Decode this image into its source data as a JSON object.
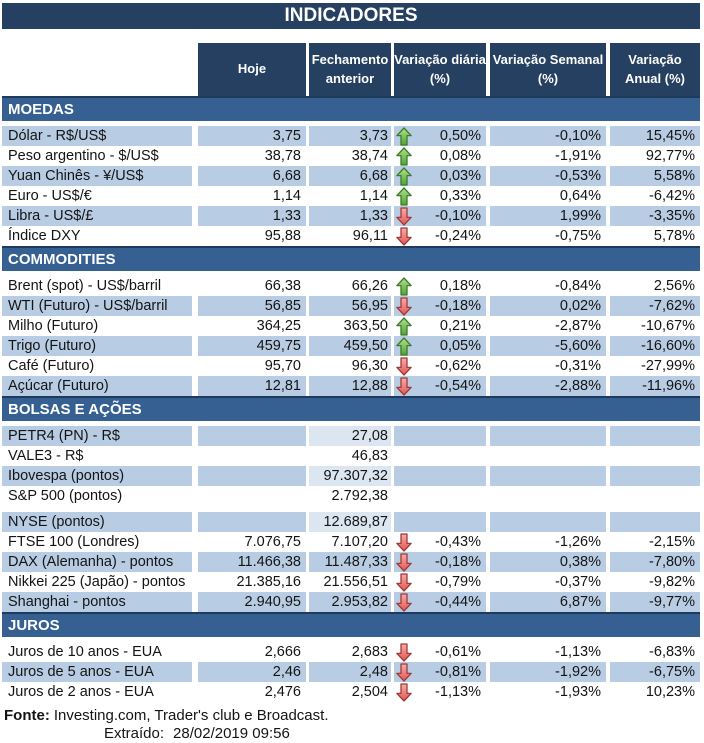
{
  "title": "INDICADORES",
  "columns": [
    "Hoje",
    "Fechamento\nanterior",
    "Variação diária\n(%)",
    "Variação Semanal\n(%)",
    "Variação\nAnual (%)"
  ],
  "colors": {
    "navy": "#254061",
    "section": "#366092",
    "row_blue": "#B8CCE4",
    "row_pale": "#DCE6F1",
    "arrow_up_fill_top": "#B2E08C",
    "arrow_up_fill_bottom": "#4FA332",
    "arrow_up_stroke": "#3C7A2E",
    "arrow_down_fill_top": "#F6ACA9",
    "arrow_down_fill_bottom": "#E25752",
    "arrow_down_stroke": "#9E3B3B"
  },
  "sections": [
    {
      "id": "moedas",
      "name": "MOEDAS",
      "rows": [
        {
          "label": "Dólar - R$/US$",
          "hoje": "3,75",
          "fechamento": "3,73",
          "arrow": "up",
          "var_diaria": "0,50%",
          "var_semanal": "-0,10%",
          "var_anual": "15,45%",
          "shade": "blue"
        },
        {
          "label": "Peso argentino - $/US$",
          "hoje": "38,78",
          "fechamento": "38,74",
          "arrow": "up",
          "var_diaria": "0,08%",
          "var_semanal": "-1,91%",
          "var_anual": "92,77%",
          "shade": "white"
        },
        {
          "label": "Yuan Chinês - ¥/US$",
          "hoje": "6,68",
          "fechamento": "6,68",
          "arrow": "up",
          "var_diaria": "0,03%",
          "var_semanal": "-0,53%",
          "var_anual": "5,58%",
          "shade": "blue"
        },
        {
          "label": "Euro - US$/€",
          "hoje": "1,14",
          "fechamento": "1,14",
          "arrow": "up",
          "var_diaria": "0,33%",
          "var_semanal": "0,64%",
          "var_anual": "-6,42%",
          "shade": "white"
        },
        {
          "label": "Libra - US$/£",
          "hoje": "1,33",
          "fechamento": "1,33",
          "arrow": "down",
          "var_diaria": "-0,10%",
          "var_semanal": "1,99%",
          "var_anual": "-3,35%",
          "shade": "blue"
        },
        {
          "label": "Índice DXY",
          "hoje": "95,88",
          "fechamento": "96,11",
          "arrow": "down",
          "var_diaria": "-0,24%",
          "var_semanal": "-0,75%",
          "var_anual": "5,78%",
          "shade": "white"
        }
      ]
    },
    {
      "id": "commodities",
      "name": "COMMODITIES",
      "rows": [
        {
          "label": "Brent (spot) - US$/barril",
          "hoje": "66,38",
          "fechamento": "66,26",
          "arrow": "up",
          "var_diaria": "0,18%",
          "var_semanal": "-0,84%",
          "var_anual": "2,56%",
          "shade": "white"
        },
        {
          "label": "WTI (Futuro) - US$/barril",
          "hoje": "56,85",
          "fechamento": "56,95",
          "arrow": "down",
          "var_diaria": "-0,18%",
          "var_semanal": "0,02%",
          "var_anual": "-7,62%",
          "shade": "blue"
        },
        {
          "label": "Milho (Futuro)",
          "hoje": "364,25",
          "fechamento": "363,50",
          "arrow": "up",
          "var_diaria": "0,21%",
          "var_semanal": "-2,87%",
          "var_anual": "-10,67%",
          "shade": "white"
        },
        {
          "label": "Trigo (Futuro)",
          "hoje": "459,75",
          "fechamento": "459,50",
          "arrow": "up",
          "var_diaria": "0,05%",
          "var_semanal": "-5,60%",
          "var_anual": "-16,60%",
          "shade": "blue"
        },
        {
          "label": "Café (Futuro)",
          "hoje": "95,70",
          "fechamento": "96,30",
          "arrow": "down",
          "var_diaria": "-0,62%",
          "var_semanal": "-0,31%",
          "var_anual": "-27,99%",
          "shade": "white"
        },
        {
          "label": "Açúcar (Futuro)",
          "hoje": "12,81",
          "fechamento": "12,88",
          "arrow": "down",
          "var_diaria": "-0,54%",
          "var_semanal": "-2,88%",
          "var_anual": "-11,96%",
          "shade": "blue"
        }
      ]
    },
    {
      "id": "bolsas",
      "name": "BOLSAS E AÇÕES",
      "rows": [
        {
          "label": "PETR4 (PN) - R$",
          "hoje": "",
          "fechamento": "27,08",
          "arrow": null,
          "var_diaria": "",
          "var_semanal": "",
          "var_anual": "",
          "shade": "blue",
          "fechamento_light": true
        },
        {
          "label": "VALE3 - R$",
          "hoje": "",
          "fechamento": "46,83",
          "arrow": null,
          "var_diaria": "",
          "var_semanal": "",
          "var_anual": "",
          "shade": "white"
        },
        {
          "label": "Ibovespa (pontos)",
          "hoje": "",
          "fechamento": "97.307,32",
          "arrow": null,
          "var_diaria": "",
          "var_semanal": "",
          "var_anual": "",
          "shade": "blue",
          "fechamento_light": true
        },
        {
          "label": "S&P 500 (pontos)",
          "hoje": "",
          "fechamento": "2.792,38",
          "arrow": null,
          "var_diaria": "",
          "var_semanal": "",
          "var_anual": "",
          "shade": "white"
        },
        {
          "label": "NYSE (pontos)",
          "hoje": "",
          "fechamento": "12.689,87",
          "arrow": null,
          "var_diaria": "",
          "var_semanal": "",
          "var_anual": "",
          "shade": "blue",
          "fechamento_light": true,
          "spacer_before": true
        },
        {
          "label": "FTSE 100 (Londres)",
          "hoje": "7.076,75",
          "fechamento": "7.107,20",
          "arrow": "down",
          "var_diaria": "-0,43%",
          "var_semanal": "-1,26%",
          "var_anual": "-2,15%",
          "shade": "white"
        },
        {
          "label": "DAX (Alemanha) - pontos",
          "hoje": "11.466,38",
          "fechamento": "11.487,33",
          "arrow": "down",
          "var_diaria": "-0,18%",
          "var_semanal": "0,38%",
          "var_anual": "-7,80%",
          "shade": "blue"
        },
        {
          "label": "Nikkei 225 (Japão) - pontos",
          "hoje": "21.385,16",
          "fechamento": "21.556,51",
          "arrow": "down",
          "var_diaria": "-0,79%",
          "var_semanal": "-0,37%",
          "var_anual": "-9,82%",
          "shade": "white"
        },
        {
          "label": "Shanghai - pontos",
          "hoje": "2.940,95",
          "fechamento": "2.953,82",
          "arrow": "down",
          "var_diaria": "-0,44%",
          "var_semanal": "6,87%",
          "var_anual": "-9,77%",
          "shade": "blue"
        }
      ]
    },
    {
      "id": "juros",
      "name": "JUROS",
      "rows": [
        {
          "label": "Juros de 10 anos - EUA",
          "hoje": "2,666",
          "fechamento": "2,683",
          "arrow": "down",
          "var_diaria": "-0,61%",
          "var_semanal": "-1,13%",
          "var_anual": "-6,83%",
          "shade": "white"
        },
        {
          "label": "Juros de 5 anos - EUA",
          "hoje": "2,46",
          "fechamento": "2,48",
          "arrow": "down",
          "var_diaria": "-0,81%",
          "var_semanal": "-1,92%",
          "var_anual": "-6,75%",
          "shade": "blue"
        },
        {
          "label": "Juros de 2 anos - EUA",
          "hoje": "2,476",
          "fechamento": "2,504",
          "arrow": "down",
          "var_diaria": "-1,13%",
          "var_semanal": "-1,93%",
          "var_anual": "10,23%",
          "shade": "white"
        }
      ]
    }
  ],
  "footer": {
    "fonte_label": "Fonte:",
    "fonte_text": "Investing.com, Trader's club e Broadcast.",
    "extraido_label": "Extraído:",
    "extraido_value": "28/02/2019 09:56"
  }
}
